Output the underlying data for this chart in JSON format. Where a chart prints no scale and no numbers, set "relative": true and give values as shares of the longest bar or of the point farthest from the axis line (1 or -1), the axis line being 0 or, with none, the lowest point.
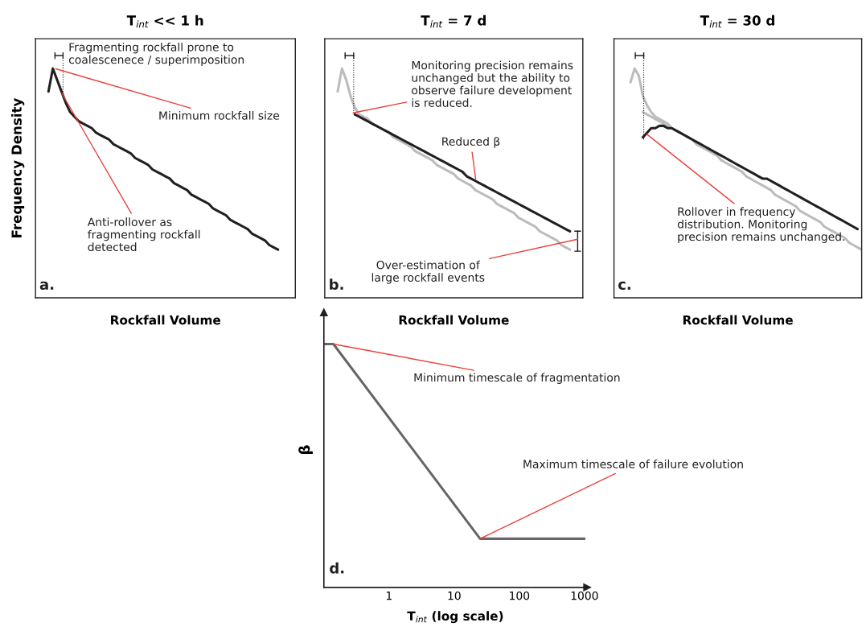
{
  "chart_data": [
    {
      "type": "line",
      "relative": true,
      "title": "T$_{int}$ << 1 h",
      "xlabel": "Rockfall Volume",
      "ylabel": "Frequency Density",
      "categories": [
        null,
        null,
        null,
        null,
        null,
        null,
        null,
        null,
        null,
        null,
        null,
        null,
        null,
        null,
        null,
        null,
        null,
        null,
        null,
        null,
        null,
        null,
        null,
        null,
        null,
        null,
        null,
        null,
        null,
        null,
        null,
        null,
        null,
        null,
        null,
        null,
        null,
        null,
        null,
        null,
        null,
        null,
        null,
        null,
        null,
        null,
        null,
        null,
        null,
        null,
        null,
        null,
        null,
        null,
        null,
        null,
        null,
        null,
        null,
        null,
        null
      ],
      "series": [
        {
          "color": "#231f20",
          "values": [
            null,
            null,
            null,
            0.9,
            1.0,
            0.95,
            0.9,
            0.85,
            0.81,
            0.79,
            0.77,
            0.76,
            0.75,
            0.74,
            0.72,
            0.71,
            0.7,
            0.69,
            0.67,
            0.66,
            0.65,
            0.64,
            0.63,
            0.61,
            0.6,
            0.59,
            0.58,
            0.56,
            0.55,
            0.54,
            0.53,
            0.52,
            0.5,
            0.49,
            0.48,
            0.47,
            0.45,
            0.44,
            0.43,
            0.42,
            0.41,
            0.39,
            0.38,
            0.37,
            0.36,
            0.34,
            0.33,
            0.32,
            0.31,
            0.3,
            0.28,
            0.27,
            0.26,
            0.25,
            0.23,
            0.22,
            0.21,
            null,
            null,
            null,
            null
          ]
        }
      ],
      "annotations": [
        "Fragmenting rockfall prone to\ncoalescenece / superimposition",
        "Minimum rockfall size",
        "Anti-rollover as\nfragmenting rockfall\ndetected",
        "a."
      ]
    },
    {
      "type": "line",
      "relative": true,
      "title": "T$_{int}$ = 7 d",
      "xlabel": "Rockfall Volume",
      "categories": [
        null,
        null,
        null,
        null,
        null,
        null,
        null,
        null,
        null,
        null,
        null,
        null,
        null,
        null,
        null,
        null,
        null,
        null,
        null,
        null,
        null,
        null,
        null,
        null,
        null,
        null,
        null,
        null,
        null,
        null,
        null,
        null,
        null,
        null,
        null,
        null,
        null,
        null,
        null,
        null,
        null,
        null,
        null,
        null,
        null,
        null,
        null,
        null,
        null,
        null,
        null,
        null,
        null,
        null,
        null,
        null,
        null,
        null,
        null,
        null,
        null
      ],
      "series": [
        {
          "color": "#bcbcbc",
          "values": [
            null,
            null,
            null,
            0.9,
            1.0,
            0.95,
            0.88,
            0.83,
            0.8,
            0.79,
            0.78,
            0.76,
            0.75,
            0.74,
            0.73,
            0.72,
            0.7,
            0.69,
            0.68,
            0.67,
            0.66,
            0.64,
            0.63,
            0.62,
            0.61,
            0.6,
            0.58,
            0.57,
            0.56,
            0.55,
            0.54,
            0.52,
            0.51,
            0.5,
            0.49,
            0.47,
            0.46,
            0.45,
            0.44,
            0.43,
            0.41,
            0.4,
            0.39,
            0.38,
            0.37,
            0.35,
            0.34,
            0.33,
            0.32,
            0.31,
            0.29,
            0.28,
            0.27,
            0.26,
            0.25,
            0.23,
            0.22,
            0.21,
            null,
            null,
            null
          ]
        },
        {
          "color": "#231f20",
          "values": [
            null,
            null,
            null,
            null,
            null,
            null,
            null,
            0.8,
            0.79,
            0.78,
            0.77,
            0.76,
            0.75,
            0.74,
            0.73,
            0.72,
            0.71,
            0.7,
            0.69,
            0.68,
            0.67,
            0.66,
            0.65,
            0.64,
            0.63,
            0.62,
            0.61,
            0.6,
            0.59,
            0.58,
            0.57,
            0.56,
            0.55,
            0.53,
            0.52,
            0.51,
            0.5,
            0.49,
            0.48,
            0.47,
            0.46,
            0.45,
            0.44,
            0.43,
            0.42,
            0.41,
            0.4,
            0.39,
            0.38,
            0.37,
            0.36,
            0.35,
            0.34,
            0.33,
            0.32,
            0.31,
            0.3,
            0.29,
            null,
            null,
            null
          ]
        }
      ],
      "annotations": [
        "Monitoring precision remains\nunchanged but the ability to\nobserve failure development\nis reduced.",
        "Reduced β",
        "Over-estimation of\nlarge rockfall events",
        "b."
      ]
    },
    {
      "type": "line",
      "relative": true,
      "title": "T$_{int}$ = 30 d",
      "xlabel": "Rockfall Volume",
      "categories": [
        null,
        null,
        null,
        null,
        null,
        null,
        null,
        null,
        null,
        null,
        null,
        null,
        null,
        null,
        null,
        null,
        null,
        null,
        null,
        null,
        null,
        null,
        null,
        null,
        null,
        null,
        null,
        null,
        null,
        null,
        null,
        null,
        null,
        null,
        null,
        null,
        null,
        null,
        null,
        null,
        null,
        null,
        null,
        null,
        null,
        null,
        null,
        null,
        null,
        null,
        null,
        null,
        null,
        null,
        null,
        null,
        null,
        null,
        null,
        null,
        null
      ],
      "series": [
        {
          "color": "#bcbcbc",
          "values": [
            null,
            null,
            null,
            null,
            0.94,
            1.0,
            0.97,
            0.88,
            0.84,
            0.81,
            0.79,
            0.78,
            0.77,
            0.76,
            0.74,
            0.73,
            0.72,
            0.71,
            0.7,
            0.69,
            0.67,
            0.66,
            0.65,
            0.64,
            0.63,
            0.62,
            0.6,
            0.59,
            0.58,
            0.57,
            0.56,
            0.55,
            0.53,
            0.52,
            0.51,
            0.5,
            0.49,
            0.48,
            0.47,
            0.45,
            0.44,
            0.43,
            0.42,
            0.41,
            0.4,
            0.38,
            0.37,
            0.36,
            0.35,
            0.34,
            0.33,
            0.31,
            0.3,
            0.29,
            0.28,
            0.27,
            0.26,
            0.24,
            0.23,
            0.22,
            0.21
          ]
        },
        {
          "color": "#bcbcbc",
          "values": [
            null,
            null,
            null,
            null,
            null,
            null,
            null,
            0.81,
            0.8,
            0.79,
            0.78,
            0.77,
            0.76,
            0.75,
            0.74,
            null,
            null,
            null,
            null,
            null,
            null,
            null,
            null,
            null,
            null,
            null,
            null,
            null,
            null,
            null,
            null,
            null,
            null,
            null,
            null,
            null,
            null,
            null,
            null,
            null,
            null,
            null,
            null,
            null,
            null,
            null,
            null,
            null,
            null,
            null,
            null,
            null,
            null,
            null,
            null,
            null,
            null,
            null,
            null,
            null,
            null
          ]
        },
        {
          "color": "#231f20",
          "values": [
            null,
            null,
            null,
            null,
            null,
            null,
            null,
            0.7,
            0.72,
            0.74,
            0.74,
            0.75,
            0.75,
            0.74,
            0.74,
            0.73,
            0.72,
            0.71,
            0.7,
            0.69,
            0.68,
            0.67,
            0.66,
            0.65,
            0.64,
            0.63,
            0.62,
            0.61,
            0.6,
            0.59,
            0.58,
            0.57,
            0.56,
            0.55,
            0.54,
            0.53,
            0.52,
            0.52,
            0.51,
            0.5,
            0.49,
            0.48,
            0.47,
            0.46,
            0.45,
            0.44,
            0.43,
            0.42,
            0.41,
            0.4,
            0.39,
            0.38,
            0.37,
            0.36,
            0.35,
            0.34,
            0.33,
            0.32,
            0.31,
            0.3,
            null
          ]
        }
      ],
      "annotations": [
        "Rollover in frequency\ndistribution. Monitoring\nprecision remains unchanged.",
        "c."
      ]
    },
    {
      "type": "line",
      "relative": true,
      "xlabel": "T$_{int}$ (log scale)",
      "ylabel": "β",
      "log": "x",
      "tick_labels": "x",
      "xlim": [
        0.1,
        1100
      ],
      "xticks": [
        1,
        10,
        100,
        1000
      ],
      "series": [
        {
          "color": "#666666",
          "x": [
            0.1,
            0.14,
            25,
            1000
          ],
          "values": [
            1,
            1,
            0.2,
            0.2
          ]
        }
      ],
      "annotations": [
        {
          "text": "Minimum timescale of fragmentation",
          "x": 0.14,
          "y": 1
        },
        {
          "text": "Maximum timescale of failure evolution",
          "x": 25,
          "y": 0.2
        },
        "d."
      ]
    }
  ]
}
